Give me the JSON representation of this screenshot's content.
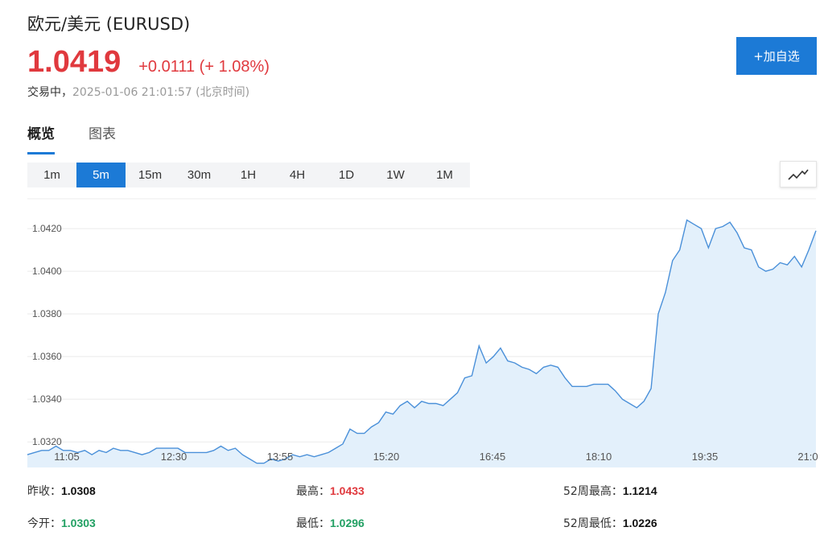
{
  "header": {
    "title": "欧元/美元  (EURUSD)",
    "price": "1.0419",
    "change": "+0.0111 (+ 1.08%)",
    "status_label": "交易中，",
    "timestamp": "2025-01-06 21:01:57  (北京时间)",
    "add_button": "+加自选"
  },
  "tabs": [
    {
      "label": "概览",
      "active": true
    },
    {
      "label": "图表",
      "active": false
    }
  ],
  "periods": [
    {
      "label": "1m",
      "active": false
    },
    {
      "label": "5m",
      "active": true
    },
    {
      "label": "15m",
      "active": false
    },
    {
      "label": "30m",
      "active": false
    },
    {
      "label": "1H",
      "active": false
    },
    {
      "label": "4H",
      "active": false
    },
    {
      "label": "1D",
      "active": false
    },
    {
      "label": "1W",
      "active": false
    },
    {
      "label": "1M",
      "active": false
    }
  ],
  "chart_toggle_icon": "line-chart-icon",
  "chart_data": {
    "type": "area",
    "y_ticks": [
      "1.0320",
      "1.0340",
      "1.0360",
      "1.0380",
      "1.0400",
      "1.0420"
    ],
    "x_ticks": [
      "11:05",
      "12:30",
      "13:55",
      "15:20",
      "16:45",
      "18:10",
      "19:35",
      "21:0"
    ],
    "ylim": [
      1.0308,
      1.0434
    ],
    "grid": true,
    "line_color": "#4a90d9",
    "fill_color": "#e3f0fb",
    "series": [
      {
        "values": [
          1.0314,
          1.0315,
          1.0316,
          1.0316,
          1.0318,
          1.0316,
          1.0316,
          1.0315,
          1.0316,
          1.0314,
          1.0316,
          1.0315,
          1.0317,
          1.0316,
          1.0316,
          1.0315,
          1.0314,
          1.0315,
          1.0317,
          1.0317,
          1.0317,
          1.0317,
          1.0315,
          1.0315,
          1.0315,
          1.0315,
          1.0316,
          1.0318,
          1.0316,
          1.0317,
          1.0314,
          1.0312,
          1.031,
          1.031,
          1.0312,
          1.0311,
          1.0312,
          1.0314,
          1.0313,
          1.0314,
          1.0313,
          1.0314,
          1.0315,
          1.0317,
          1.0319,
          1.0326,
          1.0324,
          1.0324,
          1.0327,
          1.0329,
          1.0334,
          1.0333,
          1.0337,
          1.0339,
          1.0336,
          1.0339,
          1.0338,
          1.0338,
          1.0337,
          1.034,
          1.0343,
          1.035,
          1.0351,
          1.0365,
          1.0357,
          1.036,
          1.0364,
          1.0358,
          1.0357,
          1.0355,
          1.0354,
          1.0352,
          1.0355,
          1.0356,
          1.0355,
          1.035,
          1.0346,
          1.0346,
          1.0346,
          1.0347,
          1.0347,
          1.0347,
          1.0344,
          1.034,
          1.0338,
          1.0336,
          1.0339,
          1.0345,
          1.038,
          1.039,
          1.0405,
          1.041,
          1.0424,
          1.0422,
          1.042,
          1.0411,
          1.042,
          1.0421,
          1.0423,
          1.0418,
          1.0411,
          1.041,
          1.0402,
          1.04,
          1.0401,
          1.0404,
          1.0403,
          1.0407,
          1.0402,
          1.041,
          1.0419
        ]
      }
    ]
  },
  "stats": [
    {
      "label": "昨收：",
      "value": "1.0308",
      "color": "dark"
    },
    {
      "label": "最高：",
      "value": "1.0433",
      "color": "red"
    },
    {
      "label": "52周最高：",
      "value": "1.1214",
      "color": "dark"
    },
    {
      "label": "今开：",
      "value": "1.0303",
      "color": "green"
    },
    {
      "label": "最低：",
      "value": "1.0296",
      "color": "green"
    },
    {
      "label": "52周最低：",
      "value": "1.0226",
      "color": "dark"
    }
  ]
}
